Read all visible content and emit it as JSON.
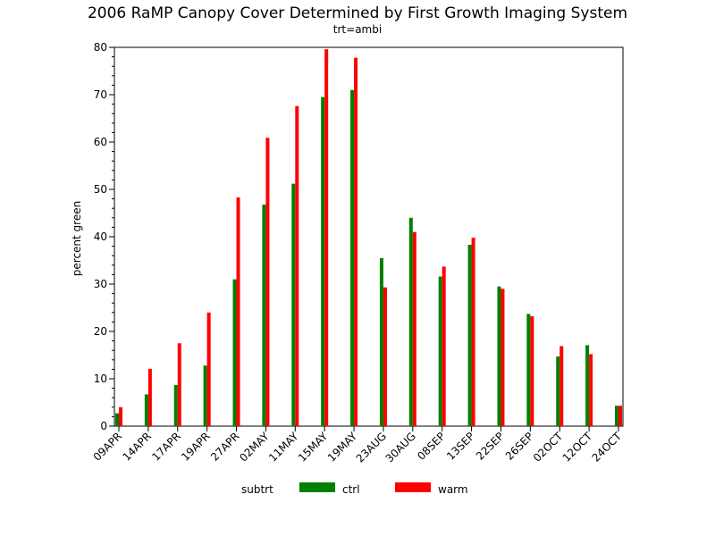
{
  "chart_data": {
    "type": "bar",
    "title": "2006 RaMP Canopy Cover Determined by First Growth Imaging System",
    "subtitle": "trt=ambi",
    "xlabel": "",
    "ylabel": "percent green",
    "ylim": [
      0,
      80
    ],
    "yticks": [
      0,
      10,
      20,
      30,
      40,
      50,
      60,
      70,
      80
    ],
    "grid": false,
    "legend": {
      "title": "subtrt",
      "position": "bottom"
    },
    "categories": [
      "09APR",
      "14APR",
      "17APR",
      "19APR",
      "27APR",
      "02MAY",
      "11MAY",
      "15MAY",
      "19MAY",
      "23AUG",
      "30AUG",
      "08SEP",
      "13SEP",
      "22SEP",
      "26SEP",
      "02OCT",
      "12OCT",
      "24OCT"
    ],
    "series": [
      {
        "name": "ctrl",
        "color": "#008000",
        "values": [
          2.7,
          6.7,
          8.7,
          12.8,
          31.0,
          46.8,
          51.2,
          69.5,
          71.0,
          35.5,
          44.0,
          31.6,
          38.3,
          29.5,
          23.7,
          14.7,
          17.1,
          4.3
        ]
      },
      {
        "name": "warm",
        "color": "#ff0000",
        "values": [
          4.0,
          12.1,
          17.5,
          24.0,
          48.3,
          60.9,
          67.6,
          79.6,
          77.8,
          29.3,
          41.0,
          33.7,
          39.8,
          29.0,
          23.2,
          16.9,
          15.2,
          4.3
        ]
      }
    ]
  }
}
